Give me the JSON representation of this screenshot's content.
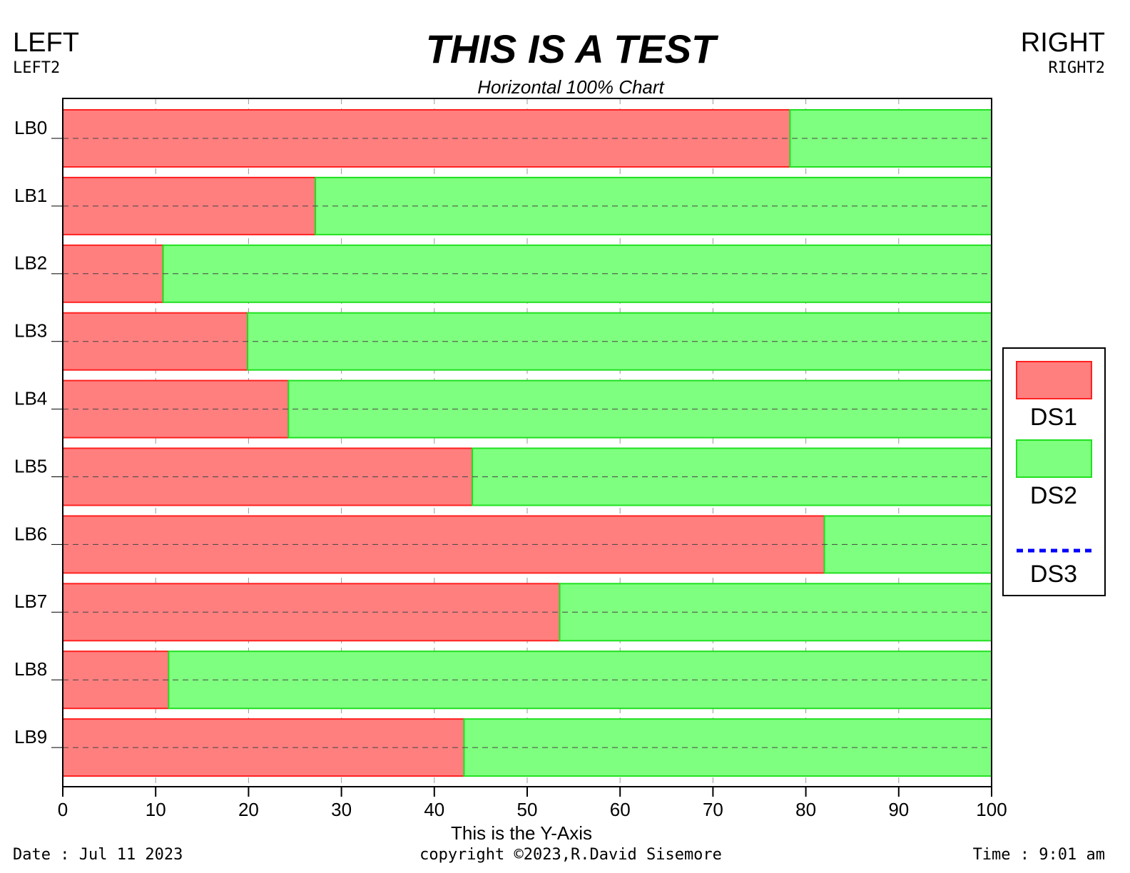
{
  "chart_data": {
    "type": "stacked-barh",
    "title": "THIS IS A TEST",
    "subtitle": "Horizontal 100% Chart",
    "corner_labels": {
      "left": "LEFT",
      "left2": "LEFT2",
      "right": "RIGHT",
      "right2": "RIGHT2"
    },
    "footer": {
      "date": "Date : Jul 11 2023",
      "copyright": "copyright ©2023,R.David Sisemore",
      "time": "Time : 9:01 am"
    },
    "x_label": "This is the Y-Axis",
    "categories": [
      "LB0",
      "LB1",
      "LB2",
      "LB3",
      "LB4",
      "LB5",
      "LB6",
      "LB7",
      "LB8",
      "LB9"
    ],
    "series": [
      {
        "name": "DS1",
        "color": "#ff7f7f",
        "stroke": "#ff2020",
        "values": [
          78.3,
          27.2,
          10.8,
          19.9,
          24.3,
          44.1,
          82.0,
          53.5,
          11.4,
          43.2
        ]
      },
      {
        "name": "DS2",
        "color": "#7fff7f",
        "stroke": "#20e020",
        "values": [
          21.7,
          72.8,
          89.2,
          80.1,
          75.7,
          55.9,
          18.0,
          46.5,
          88.6,
          56.8
        ]
      },
      {
        "name": "DS3",
        "color": "#0000ff",
        "style": "dotted",
        "values": [
          null,
          null,
          null,
          null,
          null,
          null,
          null,
          null,
          null,
          null
        ]
      }
    ],
    "xlim": [
      0,
      100
    ],
    "xticks": [
      0,
      10,
      20,
      30,
      40,
      50,
      60,
      70,
      80,
      90,
      100
    ],
    "grid": true,
    "legend": "right"
  }
}
